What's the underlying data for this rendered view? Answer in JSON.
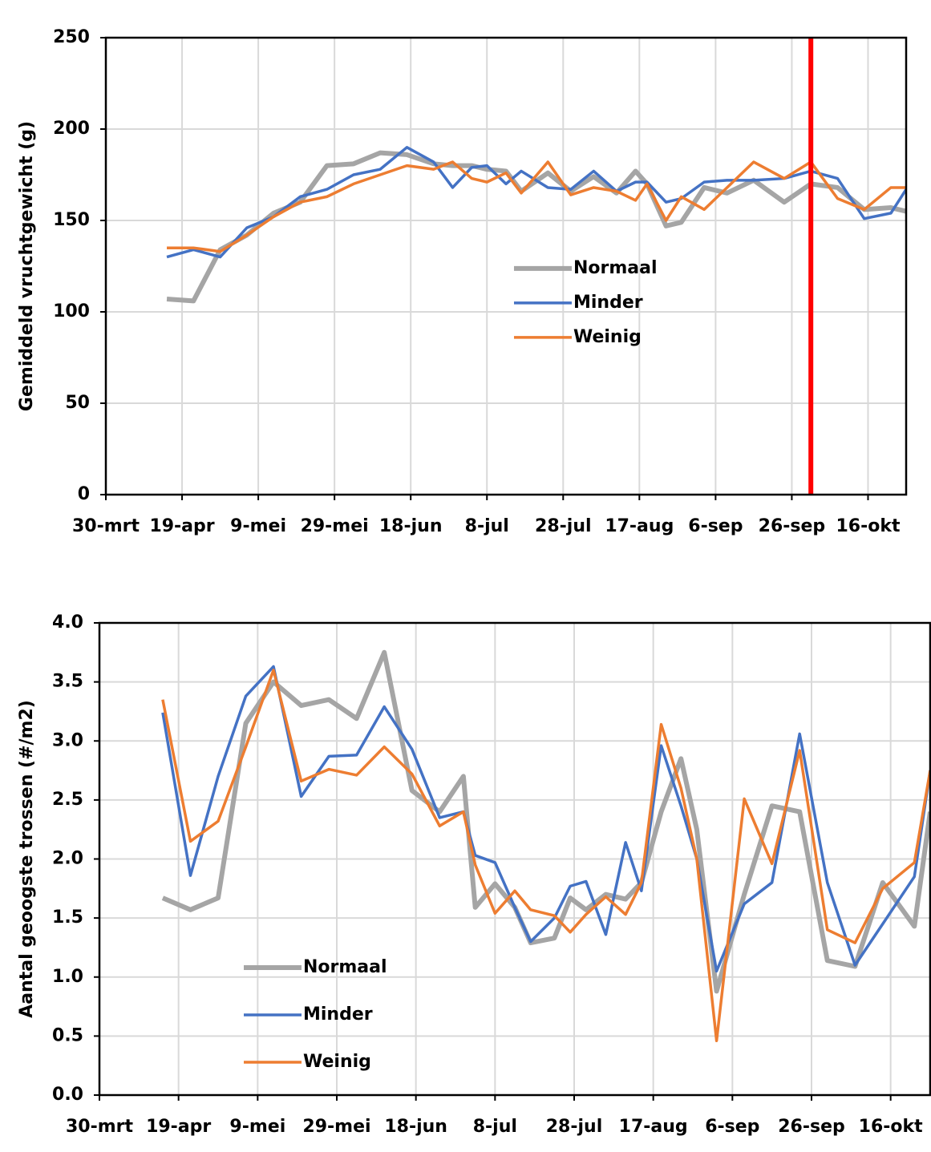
{
  "chart_data": [
    {
      "type": "line",
      "y_label": "Gemiddeld vruchtgewicht (g)",
      "x": [
        16,
        23,
        30,
        37,
        44,
        51,
        58,
        65,
        72,
        79,
        86,
        91,
        96,
        100,
        105,
        109,
        116,
        122,
        128,
        134,
        139,
        142,
        147,
        151,
        157,
        163,
        170,
        178,
        185,
        192,
        199,
        206,
        210
      ],
      "series": [
        {
          "name": "Normaal",
          "color": "#a5a5a5",
          "values": [
            107,
            106,
            134,
            142,
            154,
            160,
            180,
            181,
            187,
            186,
            181,
            180,
            180,
            178,
            177,
            166,
            176,
            166,
            174,
            165,
            177,
            170,
            147,
            149,
            168,
            165,
            172,
            160,
            170,
            168,
            156,
            157,
            155
          ]
        },
        {
          "name": "Minder",
          "color": "#4472c4",
          "values": [
            130,
            134,
            130,
            146,
            152,
            163,
            167,
            175,
            178,
            190,
            182,
            168,
            179,
            180,
            170,
            177,
            168,
            167,
            177,
            166,
            171,
            171,
            160,
            162,
            171,
            172,
            172,
            173,
            177,
            173,
            151,
            154,
            167
          ]
        },
        {
          "name": "Weinig",
          "color": "#ed7d31",
          "values": [
            135,
            135,
            133,
            142,
            152,
            160,
            163,
            170,
            175,
            180,
            178,
            182,
            173,
            171,
            176,
            165,
            182,
            164,
            168,
            166,
            161,
            170,
            150,
            163,
            156,
            168,
            182,
            173,
            182,
            162,
            156,
            168,
            168
          ]
        }
      ],
      "vline": 185,
      "vline_color": "#ff0000",
      "xlim": [
        0,
        210
      ],
      "xticks": [
        {
          "value": 0,
          "label": "30-mrt"
        },
        {
          "value": 20,
          "label": "19-apr"
        },
        {
          "value": 40,
          "label": "9-mei"
        },
        {
          "value": 60,
          "label": "29-mei"
        },
        {
          "value": 80,
          "label": "18-jun"
        },
        {
          "value": 100,
          "label": "8-jul"
        },
        {
          "value": 120,
          "label": "28-jul"
        },
        {
          "value": 140,
          "label": "17-aug"
        },
        {
          "value": 160,
          "label": "6-sep"
        },
        {
          "value": 180,
          "label": "26-sep"
        },
        {
          "value": 200,
          "label": "16-okt"
        }
      ],
      "ylim": [
        0,
        250
      ],
      "yticks": [
        0,
        50,
        100,
        150,
        200,
        250
      ],
      "grid": true,
      "legend": "center"
    },
    {
      "type": "line",
      "y_label": "Aantal geoogste trossen (#/m2)",
      "x": [
        16,
        23,
        30,
        37,
        44,
        51,
        58,
        65,
        72,
        79,
        86,
        92,
        95,
        100,
        105,
        109,
        115,
        119,
        123,
        128,
        133,
        137,
        142,
        147,
        151,
        156,
        163,
        170,
        177,
        184,
        191,
        198,
        206,
        210
      ],
      "series": [
        {
          "name": "Normaal",
          "color": "#a5a5a5",
          "values": [
            1.67,
            1.57,
            1.67,
            3.15,
            3.5,
            3.3,
            3.35,
            3.19,
            3.75,
            2.58,
            2.4,
            2.7,
            1.59,
            1.79,
            1.59,
            1.29,
            1.33,
            1.67,
            1.57,
            1.7,
            1.66,
            1.8,
            2.4,
            2.85,
            2.25,
            0.88,
            1.7,
            2.45,
            2.4,
            1.14,
            1.09,
            1.8,
            1.43,
            2.4
          ]
        },
        {
          "name": "Minder",
          "color": "#4472c4",
          "values": [
            3.24,
            1.86,
            2.7,
            3.38,
            3.63,
            2.53,
            2.87,
            2.88,
            3.29,
            2.93,
            2.35,
            2.4,
            2.03,
            1.97,
            1.59,
            1.3,
            1.5,
            1.77,
            1.81,
            1.36,
            2.14,
            1.73,
            2.96,
            2.45,
            2.0,
            1.05,
            1.62,
            1.8,
            3.06,
            1.8,
            1.1,
            1.45,
            1.85,
            2.75
          ]
        },
        {
          "name": "Weinig",
          "color": "#ed7d31",
          "values": [
            3.35,
            2.15,
            2.32,
            2.95,
            3.6,
            2.66,
            2.76,
            2.71,
            2.95,
            2.72,
            2.28,
            2.4,
            1.95,
            1.54,
            1.73,
            1.57,
            1.52,
            1.38,
            1.53,
            1.68,
            1.53,
            1.8,
            3.14,
            2.6,
            2.0,
            0.46,
            2.51,
            1.96,
            2.92,
            1.4,
            1.29,
            1.75,
            1.97,
            2.75
          ]
        }
      ],
      "xlim": [
        0,
        210
      ],
      "xticks": [
        {
          "value": 0,
          "label": "30-mrt"
        },
        {
          "value": 20,
          "label": "19-apr"
        },
        {
          "value": 40,
          "label": "9-mei"
        },
        {
          "value": 60,
          "label": "29-mei"
        },
        {
          "value": 80,
          "label": "18-jun"
        },
        {
          "value": 100,
          "label": "8-jul"
        },
        {
          "value": 120,
          "label": "28-jul"
        },
        {
          "value": 140,
          "label": "17-aug"
        },
        {
          "value": 160,
          "label": "6-sep"
        },
        {
          "value": 180,
          "label": "26-sep"
        },
        {
          "value": 200,
          "label": "16-okt"
        }
      ],
      "ylim": [
        0,
        4
      ],
      "yticks": [
        {
          "value": 0,
          "label": "0.0"
        },
        0.5,
        {
          "value": 1,
          "label": "1.0"
        },
        1.5,
        {
          "value": 2,
          "label": "2.0"
        },
        2.5,
        {
          "value": 3,
          "label": "3.0"
        },
        3.5,
        {
          "value": 4,
          "label": "4.0"
        }
      ],
      "grid": true,
      "legend": "lower left"
    }
  ]
}
